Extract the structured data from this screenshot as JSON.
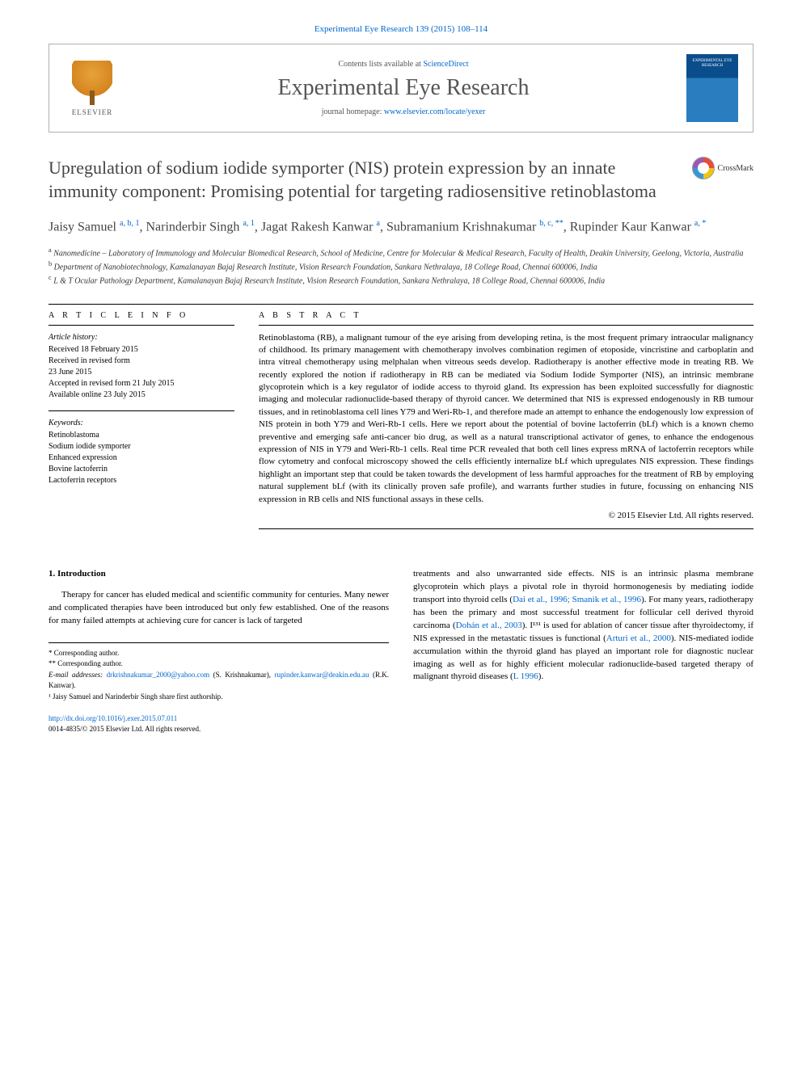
{
  "header": {
    "citation": "Experimental Eye Research 139 (2015) 108–114",
    "contents_prefix": "Contents lists available at ",
    "contents_link": "ScienceDirect",
    "journal_name": "Experimental Eye Research",
    "homepage_prefix": "journal homepage: ",
    "homepage_link": "www.elsevier.com/locate/yexer",
    "elsevier_label": "ELSEVIER",
    "cover_label": "EXPERIMENTAL EYE RESEARCH"
  },
  "title": "Upregulation of sodium iodide symporter (NIS) protein expression by an innate immunity component: Promising potential for targeting radiosensitive retinoblastoma",
  "crossmark": "CrossMark",
  "authors_html": "Jaisy Samuel <sup>a, b, 1</sup>, Narinderbir Singh <sup>a, 1</sup>, Jagat Rakesh Kanwar <sup>a</sup>, Subramanium Krishnakumar <sup>b, c, **</sup>, Rupinder Kaur Kanwar <sup>a, *</sup>",
  "affiliations": {
    "a": "Nanomedicine – Laboratory of Immunology and Molecular Biomedical Research, School of Medicine, Centre for Molecular & Medical Research, Faculty of Health, Deakin University, Geelong, Victoria, Australia",
    "b": "Department of Nanobiotechnology, Kamalanayan Bajaj Research Institute, Vision Research Foundation, Sankara Nethralaya, 18 College Road, Chennai 600006, India",
    "c": "L & T Ocular Pathology Department, Kamalanayan Bajaj Research Institute, Vision Research Foundation, Sankara Nethralaya, 18 College Road, Chennai 600006, India"
  },
  "article_info": {
    "heading": "A R T I C L E   I N F O",
    "history_label": "Article history:",
    "history": [
      "Received 18 February 2015",
      "Received in revised form",
      "23 June 2015",
      "Accepted in revised form 21 July 2015",
      "Available online 23 July 2015"
    ],
    "keywords_label": "Keywords:",
    "keywords": [
      "Retinoblastoma",
      "Sodium iodide symporter",
      "Enhanced expression",
      "Bovine lactoferrin",
      "Lactoferrin receptors"
    ]
  },
  "abstract": {
    "heading": "A B S T R A C T",
    "text": "Retinoblastoma (RB), a malignant tumour of the eye arising from developing retina, is the most frequent primary intraocular malignancy of childhood. Its primary management with chemotherapy involves combination regimen of etoposide, vincristine and carboplatin and intra vitreal chemotherapy using melphalan when vitreous seeds develop. Radiotherapy is another effective mode in treating RB. We recently explored the notion if radiotherapy in RB can be mediated via Sodium Iodide Symporter (NIS), an intrinsic membrane glycoprotein which is a key regulator of iodide access to thyroid gland. Its expression has been exploited successfully for diagnostic imaging and molecular radionuclide-based therapy of thyroid cancer. We determined that NIS is expressed endogenously in RB tumour tissues, and in retinoblastoma cell lines Y79 and Weri-Rb-1, and therefore made an attempt to enhance the endogenously low expression of NIS protein in both Y79 and Weri-Rb-1 cells. Here we report about the potential of bovine lactoferrin (bLf) which is a known chemo preventive and emerging safe anti-cancer bio drug, as well as a natural transcriptional activator of genes, to enhance the endogenous expression of NIS in Y79 and Weri-Rb-1 cells. Real time PCR revealed that both cell lines express mRNA of lactoferrin receptors while flow cytometry and confocal microscopy showed the cells efficiently internalize bLf which upregulates NIS expression. These findings highlight an important step that could be taken towards the development of less harmful approaches for the treatment of RB by employing natural supplement bLf (with its clinically proven safe profile), and warrants further studies in future, focussing on enhancing NIS expression in RB cells and NIS functional assays in these cells.",
    "copyright": "© 2015 Elsevier Ltd. All rights reserved."
  },
  "body": {
    "section_heading": "1. Introduction",
    "left_para": "Therapy for cancer has eluded medical and scientific community for centuries. Many newer and complicated therapies have been introduced but only few established. One of the reasons for many failed attempts at achieving cure for cancer is lack of targeted",
    "right_para_1": "treatments and also unwarranted side effects. NIS is an intrinsic plasma membrane glycoprotein which plays a pivotal role in thyroid hormonogenesis by mediating iodide transport into thyroid cells (",
    "right_cite_1": "Dai et al., 1996; Smanik et al., 1996",
    "right_para_2": "). For many years, radiotherapy has been the primary and most successful treatment for follicular cell derived thyroid carcinoma (",
    "right_cite_2": "Dohán et al., 2003",
    "right_para_3": "). I¹³¹ is used for ablation of cancer tissue after thyroidectomy, if NIS expressed in the metastatic tissues is functional (",
    "right_cite_3": "Arturi et al., 2000",
    "right_para_4": "). NIS-mediated iodide accumulation within the thyroid gland has played an important role for diagnostic nuclear imaging as well as for highly efficient molecular radionuclide-based targeted therapy of malignant thyroid diseases (",
    "right_cite_4": "L 1996",
    "right_para_5": ")."
  },
  "footnotes": {
    "corr1": "* Corresponding author.",
    "corr2": "** Corresponding author.",
    "email_label": "E-mail addresses: ",
    "email1": "drkrishnakumar_2000@yahoo.com",
    "email1_name": " (S. Krishnakumar), ",
    "email2": "rupinder.kanwar@deakin.edu.au",
    "email2_name": " (R.K. Kanwar).",
    "shared": "¹ Jaisy Samuel and Narinderbir Singh share first authorship."
  },
  "footer": {
    "doi": "http://dx.doi.org/10.1016/j.exer.2015.07.011",
    "issn_line": "0014-4835/© 2015 Elsevier Ltd. All rights reserved."
  },
  "colors": {
    "link": "#0066cc",
    "heading": "#444444",
    "body": "#000000"
  }
}
